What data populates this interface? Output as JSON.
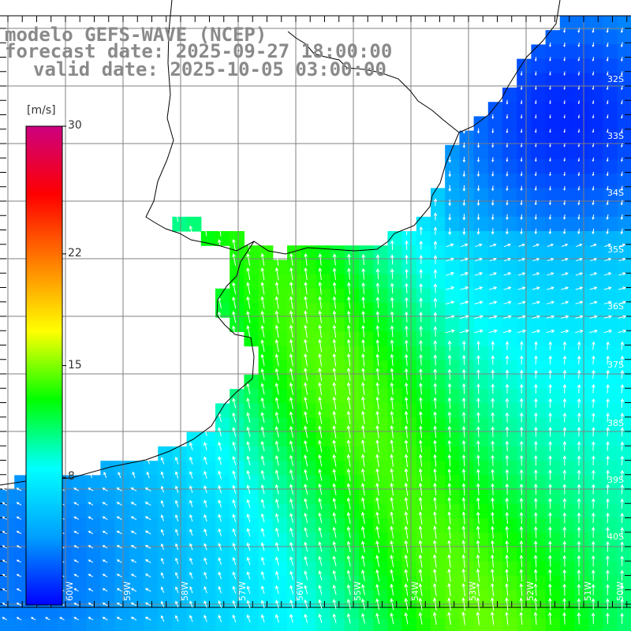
{
  "title": {
    "model": "modelo GEFS-WAVE (NCEP)",
    "forecast": "forecast date: 2025-09-27 18:00:00",
    "valid": "valid date: 2025-10-05 03:00:00"
  },
  "colorbar": {
    "unit": "[m/s]",
    "min": 0,
    "max": 30,
    "ticks": [
      {
        "value": 30,
        "label": "30"
      },
      {
        "value": 22,
        "label": "22"
      },
      {
        "value": 15,
        "label": "15"
      },
      {
        "value": 8,
        "label": "8"
      }
    ],
    "colors": [
      "#0000ff",
      "#00a0ff",
      "#00ffff",
      "#00ff00",
      "#ffff00",
      "#ff8000",
      "#ff0000",
      "#cc0080"
    ]
  },
  "map_data": {
    "variable": "wind speed and direction",
    "lon_range": [
      -60,
      -50
    ],
    "lat_range": [
      -40,
      -31
    ],
    "lat_labels": [
      "32S",
      "33S",
      "34S",
      "35S",
      "36S",
      "37S",
      "38S",
      "39S",
      "40S"
    ],
    "lon_labels": [
      "60W",
      "59W",
      "58W",
      "57W",
      "56W",
      "55W",
      "54W",
      "53W",
      "52W",
      "51W",
      "50W"
    ]
  },
  "colors": {
    "land": "#ffffff",
    "grid": "#808080",
    "coast": "#000000",
    "arrow": "#ffffff",
    "title": "#8a8a8a"
  }
}
